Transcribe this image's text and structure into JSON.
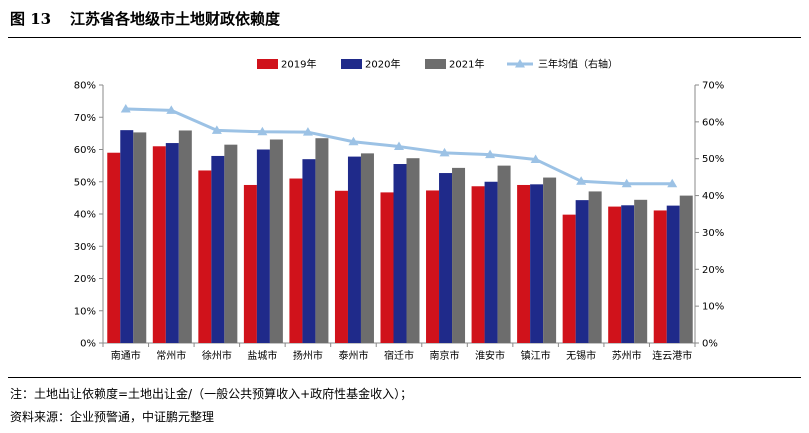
{
  "figure": {
    "number": "图 13",
    "title": "江苏省各地级市土地财政依赖度",
    "note": "注：土地出让依赖度=土地出让金/（一般公共预算收入+政府性基金收入）；",
    "source": "资料来源：企业预警通，中证鹏元整理"
  },
  "colors": {
    "series_2019": "#d0121b",
    "series_2020": "#1f2a8a",
    "series_2021": "#6d6d6d",
    "line": "#9cc2e5"
  },
  "chart_data": {
    "type": "bar",
    "categories": [
      "南通市",
      "常州市",
      "徐州市",
      "盐城市",
      "扬州市",
      "泰州市",
      "宿迁市",
      "南京市",
      "淮安市",
      "镇江市",
      "无锡市",
      "苏州市",
      "连云港市"
    ],
    "series": [
      {
        "name": "2019年",
        "axis": "left",
        "values": [
          59,
          61,
          53.5,
          49,
          51,
          47.2,
          46.7,
          47.3,
          48.6,
          49,
          39.8,
          42.3,
          41.1
        ]
      },
      {
        "name": "2020年",
        "axis": "left",
        "values": [
          66,
          62,
          58,
          60,
          57,
          57.8,
          55.5,
          52.7,
          50,
          49.2,
          44.3,
          42.7,
          42.6
        ]
      },
      {
        "name": "2021年",
        "axis": "left",
        "values": [
          65.3,
          65.9,
          61.5,
          63.1,
          63.5,
          58.8,
          57.3,
          54.3,
          55,
          51.3,
          47,
          44.4,
          45.7
        ]
      },
      {
        "name": "三年均值（右轴）",
        "type": "line",
        "axis": "right",
        "values": [
          63.5,
          63.1,
          57.7,
          57.3,
          57.2,
          54.6,
          53.3,
          51.6,
          51.1,
          49.8,
          43.9,
          43.2,
          43.2
        ]
      }
    ],
    "y_left": {
      "min": 0,
      "max": 80,
      "step": 10,
      "tick_labels": [
        "0%",
        "10%",
        "20%",
        "30%",
        "40%",
        "50%",
        "60%",
        "70%",
        "80%"
      ]
    },
    "y_right": {
      "min": 0,
      "max": 70,
      "step": 10,
      "tick_labels": [
        "0%",
        "10%",
        "20%",
        "30%",
        "40%",
        "50%",
        "60%",
        "70%"
      ]
    },
    "grid": false,
    "legend_position": "top-center"
  }
}
